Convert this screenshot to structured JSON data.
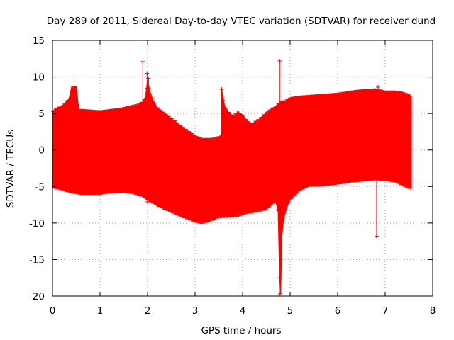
{
  "chart_data": {
    "type": "scatter",
    "title": "Day 289 of 2011, Sidereal Day-to-day VTEC variation (SDTVAR) for receiver dund",
    "xlabel": "GPS time / hours",
    "ylabel": "SDTVAR / TECUs",
    "xlim": [
      0,
      8
    ],
    "ylim": [
      -20,
      15
    ],
    "xticks": [
      0,
      1,
      2,
      3,
      4,
      5,
      6,
      7,
      8
    ],
    "yticks": [
      -20,
      -15,
      -10,
      -5,
      0,
      5,
      10,
      15
    ],
    "grid": true,
    "series": [
      {
        "name": "SDTVAR",
        "color": "#ff0000",
        "upper_envelope": {
          "x": [
            0,
            0.05,
            0.2,
            0.35,
            0.4,
            0.45,
            0.5,
            0.55,
            1.0,
            1.4,
            1.6,
            1.8,
            1.9,
            1.96,
            2.0,
            2.05,
            2.1,
            2.2,
            2.4,
            2.6,
            2.8,
            3.0,
            3.15,
            3.3,
            3.45,
            3.55,
            3.56,
            3.62,
            3.7,
            3.8,
            3.9,
            4.0,
            4.1,
            4.2,
            4.35,
            4.5,
            4.6,
            4.7,
            4.75,
            4.8,
            4.9,
            5.0,
            5.2,
            5.4,
            5.6,
            5.8,
            6.0,
            6.2,
            6.4,
            6.6,
            6.8,
            7.0,
            7.2,
            7.4,
            7.55
          ],
          "y": [
            5.2,
            5.6,
            6.0,
            7.0,
            8.5,
            8.6,
            8.6,
            5.5,
            5.3,
            5.6,
            5.9,
            6.2,
            6.6,
            7.2,
            9.5,
            8.0,
            7.0,
            5.8,
            4.8,
            3.8,
            2.8,
            1.9,
            1.5,
            1.5,
            1.6,
            2.0,
            8.2,
            6.0,
            5.2,
            4.6,
            5.2,
            4.8,
            3.9,
            3.6,
            4.2,
            5.1,
            5.6,
            6.0,
            6.3,
            6.6,
            6.7,
            7.1,
            7.3,
            7.4,
            7.5,
            7.6,
            7.7,
            7.9,
            8.1,
            8.2,
            8.3,
            8.0,
            8.0,
            7.8,
            7.4
          ]
        },
        "lower_envelope": {
          "x": [
            0,
            0.2,
            0.4,
            0.6,
            1.0,
            1.2,
            1.5,
            1.7,
            1.85,
            2.0,
            2.2,
            2.5,
            2.8,
            3.0,
            3.15,
            3.3,
            3.5,
            3.7,
            3.9,
            4.1,
            4.3,
            4.5,
            4.7,
            4.75,
            4.78,
            4.8,
            4.82,
            4.86,
            4.92,
            5.0,
            5.2,
            5.4,
            5.7,
            6.0,
            6.3,
            6.5,
            6.8,
            7.0,
            7.2,
            7.4,
            7.55
          ],
          "y": [
            -5.1,
            -5.4,
            -5.8,
            -6.0,
            -6.0,
            -5.8,
            -5.7,
            -5.9,
            -6.2,
            -6.8,
            -7.6,
            -8.5,
            -9.3,
            -9.8,
            -10.0,
            -9.7,
            -9.2,
            -9.1,
            -9.0,
            -8.6,
            -8.4,
            -8.1,
            -7.0,
            -8.5,
            -17.2,
            -19.5,
            -12.0,
            -9.5,
            -8.0,
            -6.8,
            -5.5,
            -4.9,
            -4.8,
            -4.6,
            -4.3,
            -4.2,
            -4.0,
            -4.1,
            -4.3,
            -4.9,
            -5.3
          ]
        },
        "outliers": [
          {
            "x": 1.9,
            "y": 12.1
          },
          {
            "x": 1.99,
            "y": 10.5
          },
          {
            "x": 2.0,
            "y": -7.1
          },
          {
            "x": 2.02,
            "y": 9.8
          },
          {
            "x": 3.56,
            "y": 8.3
          },
          {
            "x": 4.77,
            "y": 10.7
          },
          {
            "x": 4.78,
            "y": 12.2
          },
          {
            "x": 4.78,
            "y": -17.5
          },
          {
            "x": 4.79,
            "y": -19.7
          },
          {
            "x": 6.85,
            "y": 8.6
          },
          {
            "x": 6.82,
            "y": -11.8
          }
        ]
      }
    ]
  }
}
